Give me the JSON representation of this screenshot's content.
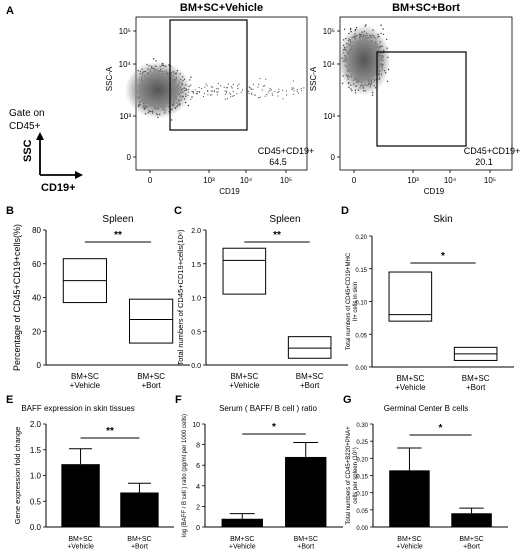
{
  "panels": {
    "A": {
      "letter": "A",
      "gate_line1": "Gate on",
      "gate_line2": "CD45+",
      "ssc": "SSC",
      "cd19": "CD19+",
      "plots": [
        {
          "title": "BM+SC+Vehicle",
          "ylabel": "SSC-A",
          "xlabel": "CD19",
          "gate_label": "CD45+CD19+",
          "gate_value": "64.5",
          "yticks": [
            "10⁵",
            "10⁴",
            "10³",
            "0"
          ],
          "xticks": [
            "0",
            "10³",
            "10⁴",
            "10⁵"
          ]
        },
        {
          "title": "BM+SC+Bort",
          "ylabel": "SSC-A",
          "xlabel": "CD19",
          "gate_label": "CD45+CD19+",
          "gate_value": "20.1",
          "yticks": [
            "10⁵",
            "10⁴",
            "10³",
            "0"
          ],
          "xticks": [
            "0",
            "10³",
            "10⁴",
            "10⁵"
          ]
        }
      ]
    },
    "B": {
      "letter": "B",
      "sig": "**"
    },
    "C": {
      "letter": "C",
      "sig": "**"
    },
    "D": {
      "letter": "D",
      "sig": "*"
    },
    "E": {
      "letter": "E",
      "sig": "**"
    },
    "F": {
      "letter": "F",
      "sig": "*"
    },
    "G": {
      "letter": "G",
      "sig": "*"
    }
  },
  "chart_data": [
    {
      "panel": "B",
      "type": "box",
      "title": "Spleen",
      "ylabel": "Percentage of CD45+CD19+cells(%)",
      "ylim": [
        0,
        80
      ],
      "yticks": [
        "0",
        "20",
        "40",
        "60",
        "80"
      ],
      "categories": [
        "BM+SC\n+Vehicle",
        "BM+SC\n+Bort"
      ],
      "boxes": [
        {
          "min": 37,
          "median": 50,
          "max": 63
        },
        {
          "min": 13,
          "median": 27,
          "max": 39
        }
      ]
    },
    {
      "panel": "C",
      "type": "box",
      "title": "Spleen",
      "ylabel": "Total numbers of CD45+CD19+cells(10⁶)",
      "ylim": [
        0,
        2.0
      ],
      "yticks": [
        "0.0",
        "0.5",
        "1.0",
        "1.5",
        "2.0"
      ],
      "categories": [
        "BM+SC\n+Vehicle",
        "BM+SC\n+Bort"
      ],
      "boxes": [
        {
          "min": 1.05,
          "median": 1.55,
          "max": 1.73
        },
        {
          "min": 0.1,
          "median": 0.25,
          "max": 0.42
        }
      ]
    },
    {
      "panel": "D",
      "type": "box",
      "title": "Skin",
      "ylabel": "Total numbers of CD45+CD19+MHC II+ cells in skin",
      "ylim": [
        0,
        0.2
      ],
      "yticks": [
        "0.00",
        "0.05",
        "0.10",
        "0.15",
        "0.20"
      ],
      "categories": [
        "BM+SC\n+Vehicle",
        "BM+SC\n+Bort"
      ],
      "boxes": [
        {
          "min": 0.07,
          "median": 0.08,
          "max": 0.145
        },
        {
          "min": 0.01,
          "median": 0.02,
          "max": 0.03
        }
      ]
    },
    {
      "panel": "E",
      "type": "bar",
      "title": "BAFF expression in skin tissues",
      "ylabel": "Gene expression fold change",
      "ylim": [
        0,
        2.0
      ],
      "yticks": [
        "0.0",
        "0.5",
        "1.0",
        "1.5",
        "2.0"
      ],
      "categories": [
        "BM+SC\n+Vehicle",
        "BM+SC\n+Bort"
      ],
      "values": [
        1.22,
        0.67
      ],
      "errors": [
        0.3,
        0.18
      ]
    },
    {
      "panel": "F",
      "type": "bar",
      "title": "Serum ( BAFF/ B cell ) ratio",
      "ylabel": "log (BAFF / B cell ) ratio (pg/ml per 1000 cells)",
      "ylim": [
        0,
        10
      ],
      "yticks": [
        "0",
        "2",
        "4",
        "6",
        "8",
        "10"
      ],
      "categories": [
        "BM+SC\n+Vehicle",
        "BM+SC\n+Bort"
      ],
      "values": [
        0.8,
        6.8
      ],
      "errors": [
        0.5,
        1.4
      ]
    },
    {
      "panel": "G",
      "type": "bar",
      "title": "Germinal Center B cells",
      "ylabel": "Total numbers of CD45+B220+PNA+ cells per spleen (10⁶)",
      "ylim": [
        0,
        0.3
      ],
      "yticks": [
        "0.00",
        "0.05",
        "0.10",
        "0.15",
        "0.20",
        "0.25",
        "0.30"
      ],
      "categories": [
        "BM+SC\n+Vehicle",
        "BM+SC\n+Bort"
      ],
      "values": [
        0.165,
        0.04
      ],
      "errors": [
        0.065,
        0.015
      ]
    }
  ]
}
